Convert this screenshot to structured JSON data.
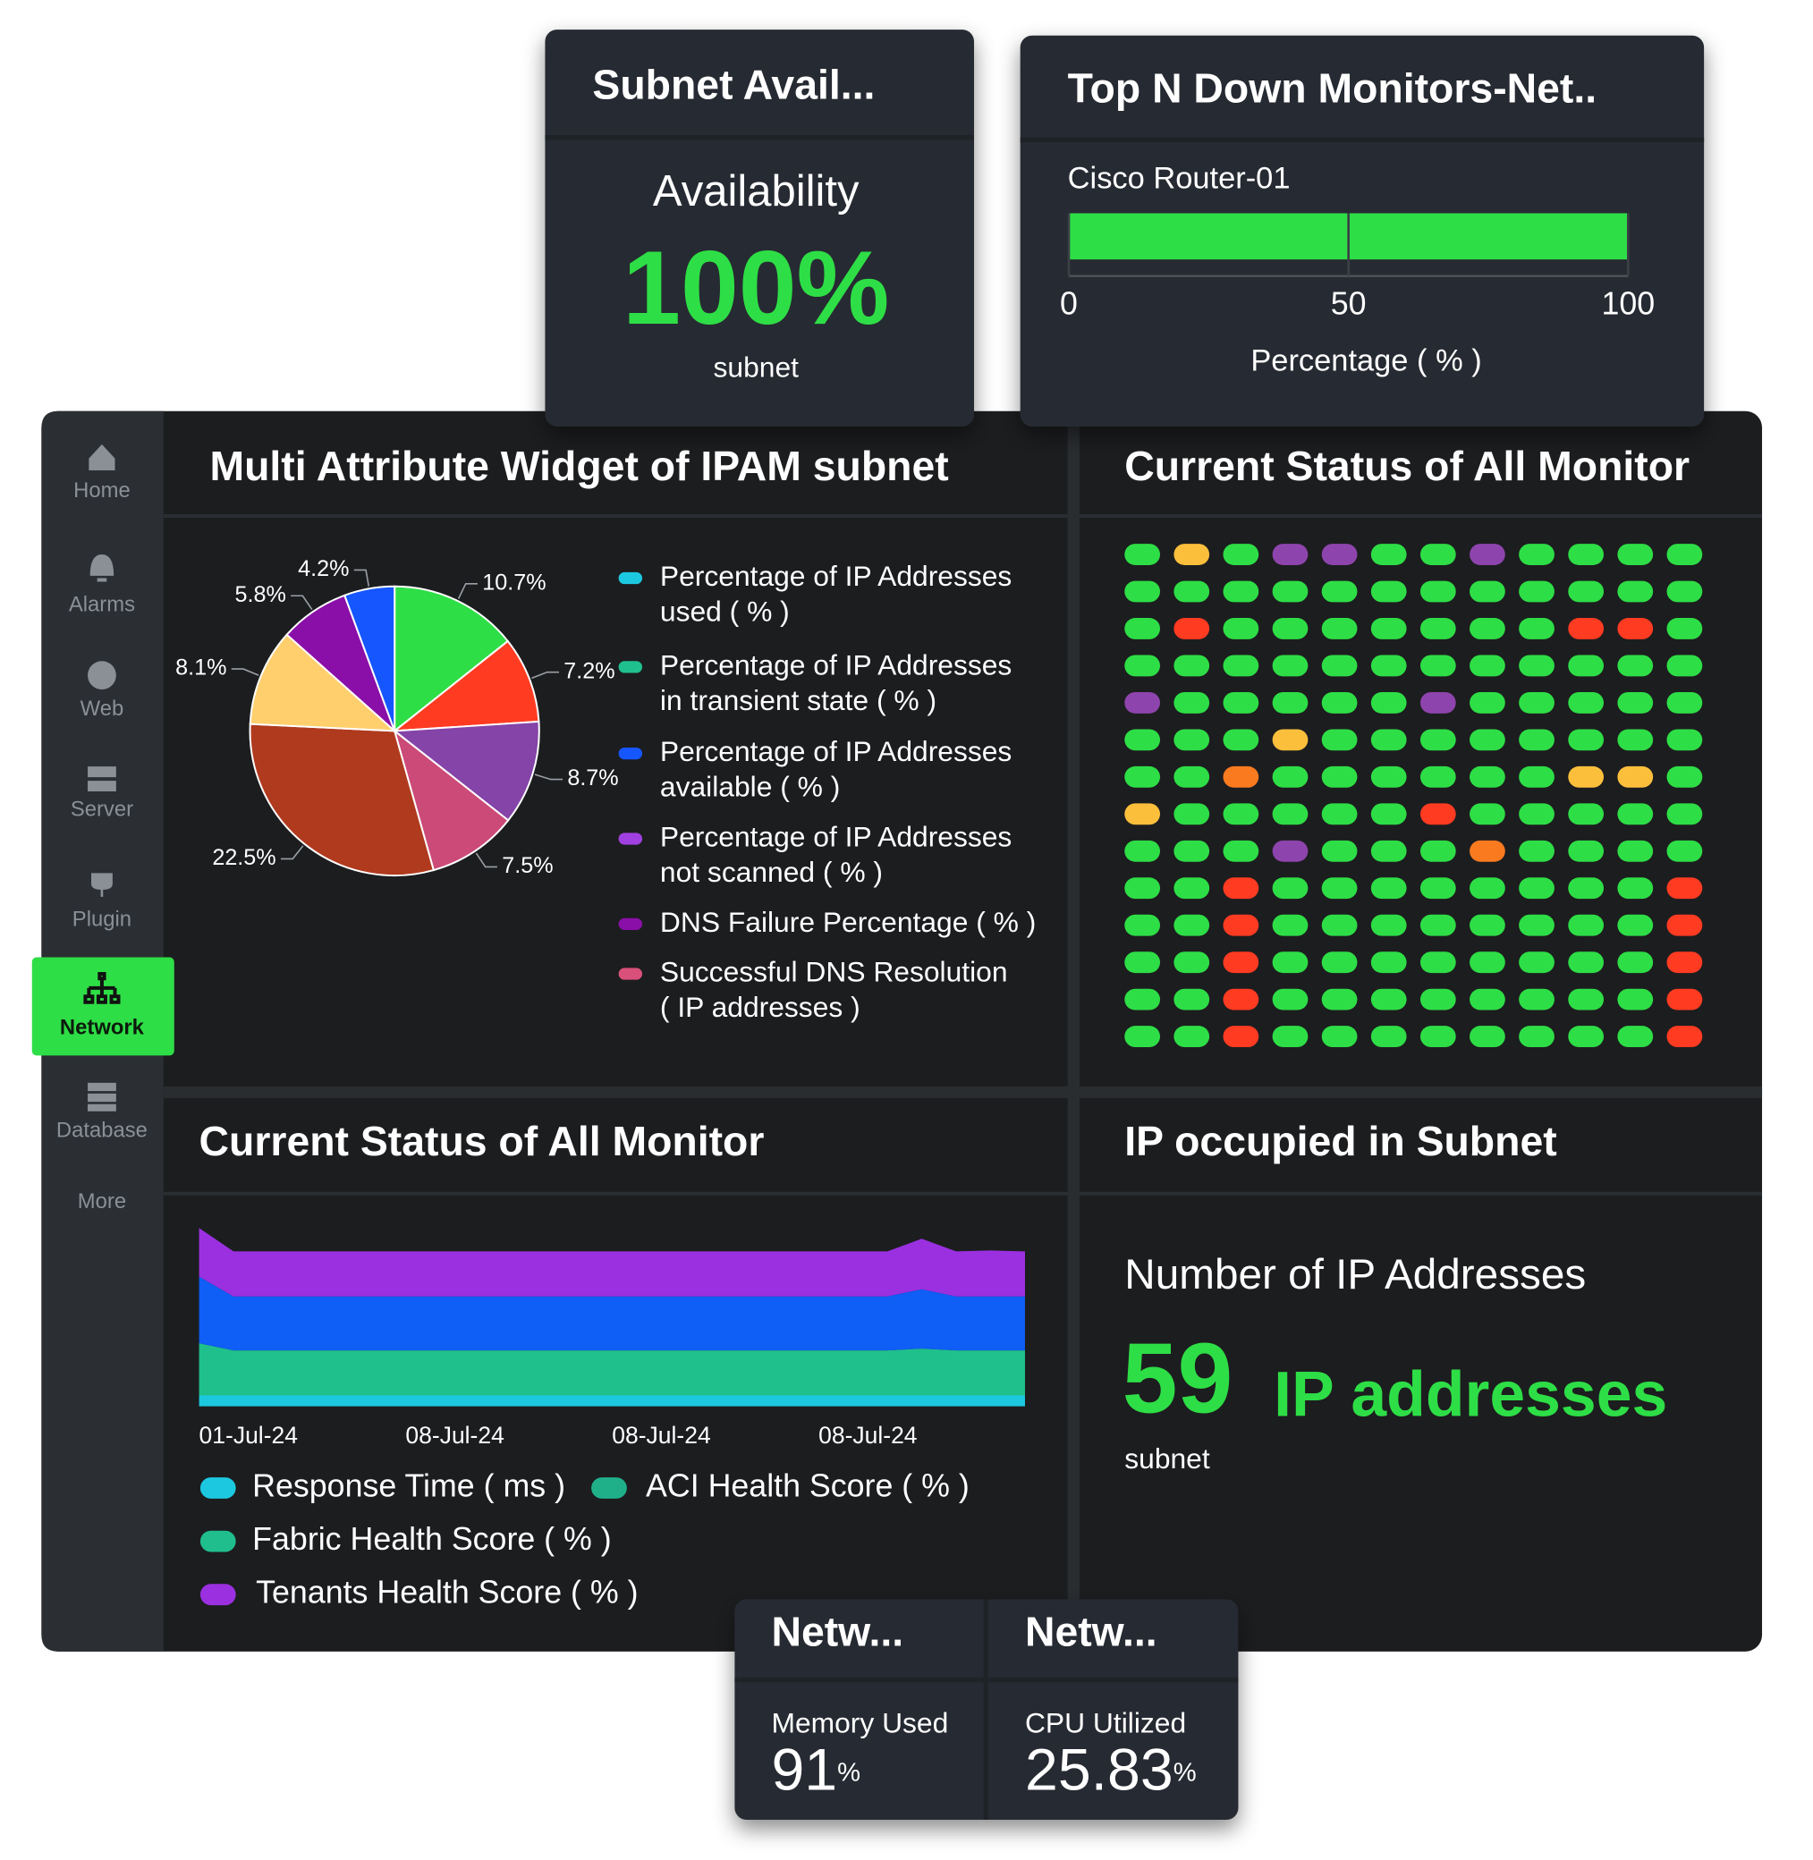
{
  "sidebar": {
    "items": [
      "Home",
      "Alarms",
      "Web",
      "Server",
      "Plugin",
      "Network",
      "Database",
      "More"
    ],
    "active": 5
  },
  "subnet_widget": {
    "title": "Subnet Avail...",
    "label": "Availability",
    "value": 100,
    "unit": "%",
    "caption": "subnet"
  },
  "status_widget": {
    "title": "Current Status of All Monitor",
    "rows": [
      "GYGPPGGPGGGG",
      "GGGGGGGGGGGG",
      "GRGGGGGGGRRG",
      "GGGGGGGGGGGG",
      "PGGGGGPGGGGG",
      "GGGYGGGGGGGG",
      "GGOGGGGGGYYG",
      "YGGGGGRGGGGG",
      "GGGPGGGOGGGG",
      "GGRGGGGGGGGR",
      "GGRGGGGGGGGR",
      "GGRGGGGGGGGR",
      "GGRGGGGGGGGR",
      "GGRGGGGGGGGR"
    ],
    "colors": {
      "G": "#2ede46",
      "Y": "#fbbf3c",
      "P": "#8e44ad",
      "R": "#ff3b22",
      "O": "#fa7a20"
    }
  },
  "ip_widget": {
    "title": "IP occupied in Subnet",
    "label": "Number of IP Addresses",
    "value": 59,
    "unit": "IP addresses",
    "caption": "subnet"
  },
  "network_widgets": [
    {
      "title": "Netw...",
      "label": "Memory Used",
      "value": 91,
      "unit": "%"
    },
    {
      "title": "Netw...",
      "label": "CPU Utilized",
      "value": 25.83,
      "unit": "%"
    }
  ],
  "chart_data": [
    {
      "type": "bar",
      "title": "Top N Down Monitors-Net..",
      "categories": [
        "Cisco Router-01"
      ],
      "values": [
        100
      ],
      "color": "#2ede46",
      "xlim": [
        0,
        100
      ],
      "xticks": [
        0,
        50,
        100
      ],
      "xlabel": "Percentage ( % )",
      "grid": true
    },
    {
      "type": "pie",
      "title": "Multi Attribute Widget of IPAM subnet",
      "values": [
        10.7,
        7.2,
        8.7,
        7.5,
        22.5,
        8.1,
        5.8,
        4.2
      ],
      "value_labels": [
        "10.7%",
        "7.2%",
        "8.7%",
        "7.5%",
        "22.5%",
        "8.1%",
        "5.8%",
        "4.2%"
      ],
      "colors": [
        "#2ede46",
        "#ff3b22",
        "#8444a8",
        "#cc4a78",
        "#b03a1e",
        "#ffcf6e",
        "#8a0fa8",
        "#1556ff"
      ],
      "legend": [
        {
          "label": [
            "Percentage of IP Addresses",
            "used ( % )"
          ],
          "color": "#1cc8e0"
        },
        {
          "label": [
            "Percentage of IP Addresses",
            "in transient state ( % )"
          ],
          "color": "#20c08e"
        },
        {
          "label": [
            "Percentage of IP Addresses",
            "available ( % )"
          ],
          "color": "#1556ff"
        },
        {
          "label": [
            "Percentage of IP Addresses",
            "not scanned ( % )"
          ],
          "color": "#a040e0"
        },
        {
          "label": [
            "DNS Failure Percentage ( % )"
          ],
          "color": "#8a0fa8"
        },
        {
          "label": [
            "Successful DNS Resolution",
            "( IP addresses )"
          ],
          "color": "#d9507a"
        }
      ]
    },
    {
      "type": "area",
      "title": "Current Status of All Monitor",
      "stacked": true,
      "x": [
        0,
        1,
        2,
        3,
        4,
        5,
        6,
        7,
        8,
        9,
        10,
        11,
        12,
        13,
        14,
        15,
        16,
        17,
        18,
        19,
        20,
        21,
        22,
        23,
        24
      ],
      "xlim": [
        0,
        24
      ],
      "ylim": [
        0,
        100
      ],
      "xticks": [
        {
          "value": 0,
          "label": "01-Jul-24"
        },
        {
          "value": 6,
          "label": "08-Jul-24"
        },
        {
          "value": 12,
          "label": "08-Jul-24"
        },
        {
          "value": 18,
          "label": "08-Jul-24"
        }
      ],
      "series": [
        {
          "name": "Response Time ( ms )",
          "color": "#1cc8e0",
          "fill": "#1cc8e0",
          "values": [
            6,
            6,
            6,
            6,
            6,
            6,
            6,
            6,
            6,
            6,
            6,
            6,
            6,
            6,
            6,
            6,
            6,
            6,
            6,
            6,
            6,
            6,
            6,
            6,
            6
          ]
        },
        {
          "name": "Fabric Health Score ( % )",
          "color": "#20bd8d",
          "fill": "#1fc08c",
          "values": [
            29,
            25,
            25,
            25,
            25,
            25,
            25,
            25,
            25,
            25,
            25,
            25,
            25,
            25,
            25,
            25,
            25,
            25,
            25,
            25,
            25,
            26,
            25,
            25,
            25
          ]
        },
        {
          "name": "ACI Health Score ( % )",
          "color": "#1fb08a",
          "fill": "#0f5ef5",
          "values": [
            37,
            30,
            30,
            30,
            30,
            30,
            30,
            30,
            30,
            30,
            30,
            30,
            30,
            30,
            30,
            30,
            30,
            30,
            30,
            30,
            30,
            33,
            30,
            30,
            30
          ]
        },
        {
          "name": "Tenants Health Score ( % )",
          "color": "#9b30e0",
          "fill": "#9b30e0",
          "values": [
            27,
            25,
            25,
            25,
            25,
            25,
            25,
            25,
            25,
            25,
            25,
            25,
            25,
            25,
            25,
            25,
            25,
            25,
            25,
            25,
            25,
            28,
            25,
            25.5,
            25
          ]
        }
      ]
    }
  ]
}
